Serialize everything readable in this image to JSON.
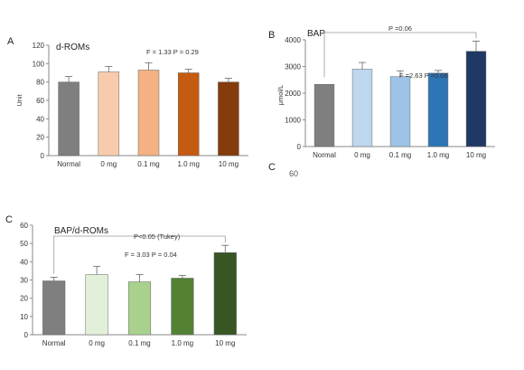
{
  "chart_data": [
    {
      "panel_label": "A",
      "type": "bar",
      "title": "d-ROMs",
      "ylabel": "Unit",
      "xlabel": "",
      "categories": [
        "Normal",
        "0 mg",
        "0.1 mg",
        "1.0 mg",
        "10 mg"
      ],
      "values": [
        80,
        91,
        93,
        90,
        80
      ],
      "errors": [
        6,
        6,
        8,
        4,
        4
      ],
      "colors": [
        "#7f7f7f",
        "#f8cbad",
        "#f4b183",
        "#c55a11",
        "#843c0c"
      ],
      "ylim": [
        0,
        120
      ],
      "yticks": [
        "0",
        "20",
        "40",
        "60",
        "80",
        "100",
        "120"
      ],
      "annotation": "F = 1.33  P = 0.29",
      "bracket": null
    },
    {
      "panel_label": "B",
      "type": "bar",
      "title": "BAP",
      "ylabel": "μmol/L",
      "xlabel": "",
      "categories": [
        "Normal",
        "0 mg",
        "0.1 mg",
        "1.0 mg",
        "10 mg"
      ],
      "values": [
        2330,
        2900,
        2620,
        2750,
        3570
      ],
      "errors": [
        0,
        250,
        220,
        100,
        380
      ],
      "colors": [
        "#7f7f7f",
        "#bdd7ee",
        "#9dc3e6",
        "#2e75b6",
        "#1f3864"
      ],
      "ylim": [
        0,
        4000
      ],
      "yticks": [
        "0",
        "1000",
        "2000",
        "3000",
        "4000"
      ],
      "annotation": "F =2.63  P =0.06",
      "bracket": "P =0.06"
    },
    {
      "panel_label": "C",
      "type": "bar",
      "title": "BAP/d-ROMs",
      "ylabel": "",
      "xlabel": "",
      "categories": [
        "Normal",
        "0 mg",
        "0.1 mg",
        "1.0 mg",
        "10 mg"
      ],
      "values": [
        29.5,
        33,
        29,
        31,
        45
      ],
      "errors": [
        2,
        4.5,
        4,
        1.5,
        4
      ],
      "colors": [
        "#7f7f7f",
        "#e2f0d9",
        "#a9d18e",
        "#548235",
        "#375623"
      ],
      "ylim": [
        0,
        60
      ],
      "yticks": [
        "0",
        "10",
        "20",
        "30",
        "40",
        "50",
        "60"
      ],
      "annotation": "F = 3.03  P = 0.04",
      "bracket": "P<0.05 (Tukey)"
    }
  ],
  "fragments": {
    "b_cutoff_letter": "C",
    "b_cutoff_tick": "60"
  }
}
